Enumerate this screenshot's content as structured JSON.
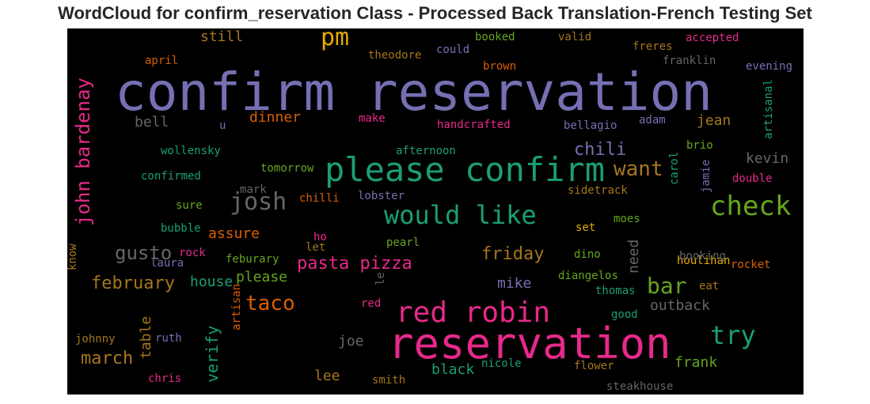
{
  "title": "WordCloud for confirm_reservation Class - Processed Back Translation-French Testing Set",
  "chart_data": {
    "type": "wordcloud",
    "palette": [
      "#7570b3",
      "#1b9e77",
      "#e7298a",
      "#d95f02",
      "#e6ab02",
      "#66a61e",
      "#a6761d",
      "#666666"
    ],
    "words": [
      {
        "text": "confirm reservation",
        "color": "#7570b3"
      },
      {
        "text": "reservation",
        "color": "#e7298a"
      },
      {
        "text": "please confirm",
        "color": "#1b9e77"
      },
      {
        "text": "red robin",
        "color": "#e7298a"
      },
      {
        "text": "would like",
        "color": "#1b9e77"
      },
      {
        "text": "check",
        "color": "#66a61e"
      },
      {
        "text": "pm",
        "color": "#e6ab02"
      },
      {
        "text": "john bardenay",
        "color": "#e7298a"
      },
      {
        "text": "josh",
        "color": "#666666"
      },
      {
        "text": "taco",
        "color": "#d95f02"
      },
      {
        "text": "try",
        "color": "#1b9e77"
      },
      {
        "text": "bar",
        "color": "#66a61e"
      },
      {
        "text": "want",
        "color": "#a6761d"
      },
      {
        "text": "chili",
        "color": "#7570b3"
      },
      {
        "text": "gusto",
        "color": "#666666"
      },
      {
        "text": "pasta pizza",
        "color": "#e7298a"
      },
      {
        "text": "friday",
        "color": "#a6761d"
      },
      {
        "text": "february",
        "color": "#a6761d"
      },
      {
        "text": "march",
        "color": "#a6761d"
      },
      {
        "text": "verify",
        "color": "#1b9e77"
      },
      {
        "text": "need",
        "color": "#666666"
      },
      {
        "text": "mike",
        "color": "#7570b3"
      },
      {
        "text": "kevin",
        "color": "#666666"
      },
      {
        "text": "jean",
        "color": "#a6761d"
      },
      {
        "text": "dinner",
        "color": "#d95f02"
      },
      {
        "text": "bell",
        "color": "#666666"
      },
      {
        "text": "still",
        "color": "#a6761d"
      },
      {
        "text": "house",
        "color": "#1b9e77"
      },
      {
        "text": "please",
        "color": "#66a61e"
      },
      {
        "text": "assure",
        "color": "#d95f02"
      },
      {
        "text": "black",
        "color": "#1b9e77"
      },
      {
        "text": "lee",
        "color": "#a6761d"
      },
      {
        "text": "joe",
        "color": "#666666"
      },
      {
        "text": "frank",
        "color": "#66a61e"
      },
      {
        "text": "outback",
        "color": "#666666"
      },
      {
        "text": "table",
        "color": "#a6761d"
      },
      {
        "text": "booked",
        "color": "#66a61e"
      },
      {
        "text": "valid",
        "color": "#a6761d"
      },
      {
        "text": "accepted",
        "color": "#e7298a"
      },
      {
        "text": "freres",
        "color": "#a6761d"
      },
      {
        "text": "franklin",
        "color": "#666666"
      },
      {
        "text": "evening",
        "color": "#7570b3"
      },
      {
        "text": "april",
        "color": "#d95f02"
      },
      {
        "text": "theodore",
        "color": "#a6761d"
      },
      {
        "text": "could",
        "color": "#7570b3"
      },
      {
        "text": "brown",
        "color": "#d95f02"
      },
      {
        "text": "artisanal",
        "color": "#1b9e77"
      },
      {
        "text": "make",
        "color": "#e7298a"
      },
      {
        "text": "handcrafted",
        "color": "#e7298a"
      },
      {
        "text": "bellagio",
        "color": "#7570b3"
      },
      {
        "text": "adam",
        "color": "#7570b3"
      },
      {
        "text": "u",
        "color": "#7570b3"
      },
      {
        "text": "wollensky",
        "color": "#1b9e77"
      },
      {
        "text": "afternoon",
        "color": "#1b9e77"
      },
      {
        "text": "brio",
        "color": "#66a61e"
      },
      {
        "text": "confirmed",
        "color": "#1b9e77"
      },
      {
        "text": "tomorrow",
        "color": "#66a61e"
      },
      {
        "text": "carol",
        "color": "#1b9e77"
      },
      {
        "text": "jamie",
        "color": "#7570b3"
      },
      {
        "text": "double",
        "color": "#e7298a"
      },
      {
        "text": "mark",
        "color": "#666666"
      },
      {
        "text": "chilli",
        "color": "#d95f02"
      },
      {
        "text": "lobster",
        "color": "#7570b3"
      },
      {
        "text": "sidetrack",
        "color": "#a6761d"
      },
      {
        "text": "sure",
        "color": "#66a61e"
      },
      {
        "text": "moes",
        "color": "#66a61e"
      },
      {
        "text": "bubble",
        "color": "#1b9e77"
      },
      {
        "text": "set",
        "color": "#e6ab02"
      },
      {
        "text": "ho",
        "color": "#e7298a"
      },
      {
        "text": "pearl",
        "color": "#66a61e"
      },
      {
        "text": "houlihan",
        "color": "#e6ab02"
      },
      {
        "text": "know",
        "color": "#a6761d"
      },
      {
        "text": "rock",
        "color": "#e7298a"
      },
      {
        "text": "let",
        "color": "#a6761d"
      },
      {
        "text": "dino",
        "color": "#66a61e"
      },
      {
        "text": "booking",
        "color": "#666666"
      },
      {
        "text": "laura",
        "color": "#7570b3"
      },
      {
        "text": "feburary",
        "color": "#66a61e"
      },
      {
        "text": "rocket",
        "color": "#d95f02"
      },
      {
        "text": "le",
        "color": "#666666"
      },
      {
        "text": "diangelos",
        "color": "#66a61e"
      },
      {
        "text": "thomas",
        "color": "#1b9e77"
      },
      {
        "text": "eat",
        "color": "#a6761d"
      },
      {
        "text": "red",
        "color": "#e7298a"
      },
      {
        "text": "artisan",
        "color": "#d95f02"
      },
      {
        "text": "good",
        "color": "#1b9e77"
      },
      {
        "text": "johnny",
        "color": "#a6761d"
      },
      {
        "text": "ruth",
        "color": "#7570b3"
      },
      {
        "text": "nicole",
        "color": "#1b9e77"
      },
      {
        "text": "flower",
        "color": "#a6761d"
      },
      {
        "text": "chris",
        "color": "#e7298a"
      },
      {
        "text": "smith",
        "color": "#a6761d"
      },
      {
        "text": "steakhouse",
        "color": "#666666"
      }
    ]
  }
}
